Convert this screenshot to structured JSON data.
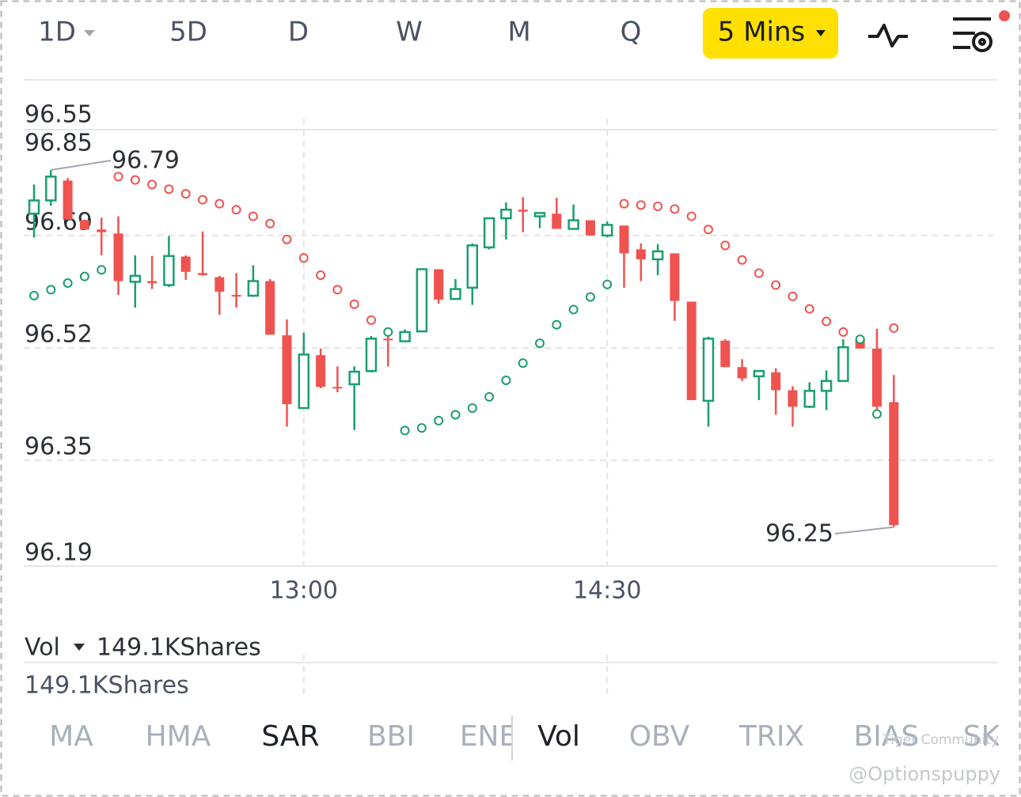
{
  "toolbar": {
    "periods": [
      "1D",
      "5D",
      "D",
      "W",
      "M",
      "Q"
    ],
    "interval": "5 Mins"
  },
  "chart_data": {
    "type": "candlestick",
    "categories": [
      null,
      null,
      null,
      null,
      null,
      null,
      null,
      null,
      null,
      null,
      null,
      null,
      null,
      null,
      null,
      null,
      "13:00",
      null,
      null,
      null,
      null,
      null,
      null,
      null,
      null,
      null,
      null,
      null,
      null,
      null,
      null,
      null,
      null,
      null,
      "14:30",
      null,
      null,
      null,
      null,
      null,
      null,
      null,
      null,
      null,
      null,
      null,
      null,
      null,
      null,
      null,
      null,
      null
    ],
    "open": [
      96.723,
      96.743,
      96.773,
      96.713,
      96.699,
      96.693,
      96.62,
      96.621,
      96.615,
      96.658,
      96.633,
      96.627,
      96.6,
      96.599,
      96.621,
      96.539,
      96.429,
      96.509,
      96.461,
      96.465,
      96.485,
      96.534,
      96.53,
      96.545,
      96.639,
      96.594,
      96.611,
      96.672,
      96.716,
      96.729,
      96.719,
      96.723,
      96.7,
      96.713,
      96.69,
      96.705,
      96.669,
      96.654,
      96.663,
      96.59,
      96.44,
      96.531,
      96.491,
      96.477,
      96.483,
      96.456,
      96.431,
      96.455,
      96.47,
      96.533,
      96.519,
      96.438
    ],
    "high": [
      96.767,
      96.789,
      96.777,
      96.714,
      96.717,
      96.719,
      96.66,
      96.659,
      96.689,
      96.66,
      96.696,
      96.629,
      96.633,
      96.645,
      96.624,
      96.563,
      96.543,
      96.519,
      96.492,
      96.492,
      96.538,
      96.551,
      96.548,
      96.639,
      96.639,
      96.624,
      96.678,
      96.716,
      96.74,
      96.748,
      96.725,
      96.747,
      96.737,
      96.713,
      96.711,
      96.705,
      96.678,
      96.677,
      96.663,
      96.59,
      96.537,
      96.533,
      96.503,
      96.485,
      96.489,
      96.462,
      96.468,
      96.486,
      96.533,
      96.538,
      96.549,
      96.479
    ],
    "low": [
      96.687,
      96.735,
      96.714,
      96.699,
      96.66,
      96.6,
      96.581,
      96.609,
      96.612,
      96.623,
      96.629,
      96.57,
      96.581,
      96.597,
      96.54,
      96.401,
      96.429,
      96.459,
      96.453,
      96.396,
      96.483,
      96.492,
      96.53,
      96.545,
      96.587,
      96.593,
      96.585,
      96.669,
      96.684,
      96.695,
      96.701,
      96.7,
      96.699,
      96.69,
      96.687,
      96.611,
      96.621,
      96.63,
      96.561,
      96.441,
      96.401,
      96.491,
      96.47,
      96.441,
      96.419,
      96.401,
      96.429,
      96.426,
      96.47,
      96.519,
      96.417,
      96.249
    ],
    "close": [
      96.743,
      96.779,
      96.714,
      96.699,
      96.695,
      96.621,
      96.629,
      96.618,
      96.659,
      96.635,
      96.63,
      96.605,
      96.598,
      96.621,
      96.54,
      96.435,
      96.51,
      96.461,
      96.459,
      96.484,
      96.534,
      96.532,
      96.544,
      96.639,
      96.593,
      96.609,
      96.675,
      96.716,
      96.729,
      96.726,
      96.724,
      96.7,
      96.713,
      96.69,
      96.706,
      96.663,
      96.654,
      96.666,
      96.591,
      96.441,
      96.534,
      96.491,
      96.474,
      96.485,
      96.456,
      96.431,
      96.455,
      96.47,
      96.521,
      96.519,
      96.431,
      96.252
    ],
    "sar": {
      "name": "SAR",
      "values": [
        96.599,
        96.608,
        96.618,
        96.628,
        96.638,
        96.779,
        96.774,
        96.767,
        96.76,
        96.753,
        96.744,
        96.738,
        96.729,
        96.719,
        96.708,
        96.684,
        96.656,
        96.63,
        96.608,
        96.586,
        96.562,
        96.544,
        96.395,
        96.399,
        96.41,
        96.419,
        96.429,
        96.446,
        96.471,
        96.497,
        96.527,
        96.555,
        96.578,
        96.597,
        96.616,
        96.738,
        96.736,
        96.734,
        96.73,
        96.719,
        96.699,
        96.675,
        96.653,
        96.633,
        96.615,
        96.598,
        96.579,
        96.56,
        96.544,
        96.533,
        96.42,
        96.55
      ]
    },
    "up_color": "#1a9e6e",
    "down_color": "#ef5350",
    "ylim": [
      96.19,
      96.85
    ],
    "yticks": [
      96.85,
      96.69,
      96.52,
      96.35,
      96.19
    ],
    "last_price_label": 96.55,
    "high_label": 96.79,
    "low_label": 96.25,
    "grid": true,
    "volume": {
      "label": "Vol",
      "max_label": "149.1KShares"
    }
  },
  "indicator_tabs": [
    "MA",
    "HMA",
    "SAR",
    "BBI",
    "ENE",
    "Vol",
    "OBV",
    "TRIX",
    "BIAS",
    "SK"
  ],
  "watermark": [
    "Tiger Community",
    "@Optionspuppy"
  ]
}
